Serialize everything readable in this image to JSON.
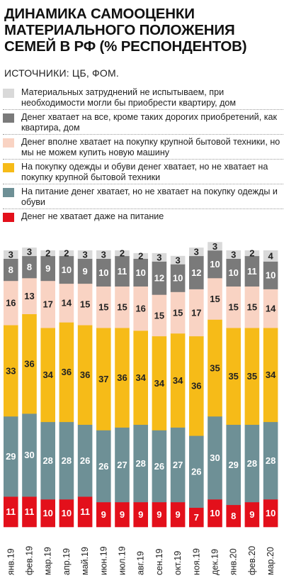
{
  "title": "ДИНАМИКА САМООЦЕНКИ МАТЕРИАЛЬНОГО ПОЛОЖЕНИЯ СЕМЕЙ В РФ (% РЕСПОНДЕНТОВ)",
  "source": "ИСТОЧНИКИ: ЦБ, ФОМ.",
  "legend": [
    {
      "label": "Материальных затруднений не испытываем, при необходимости могли бы приобрести квартиру, дом",
      "color": "#d9d9d9"
    },
    {
      "label": "Денег хватает на все, кроме таких дорогих приобретений, как квартира, дом",
      "color": "#7a7a7a"
    },
    {
      "label": "Денег вполне хватает на покупку крупной бытовой техники, но мы не можем купить новую машину",
      "color": "#f9d3c3"
    },
    {
      "label": "На покупку одежды и обуви денег хватает, но не хватает на покупку крупной бытовой техники",
      "color": "#f6bb18"
    },
    {
      "label": "На питание денег хватает, но не хватает на покупку одежды и обуви",
      "color": "#6e9096"
    },
    {
      "label": "Денег не хватает даже на питание",
      "color": "#e3101b"
    }
  ],
  "chart_data": {
    "type": "bar",
    "stacked": true,
    "orientation": "vertical",
    "categories": [
      "янв.19",
      "фев.19",
      "мар.19",
      "апр.19",
      "май.19",
      "июн.19",
      "июл.19",
      "авг.19",
      "сен.19",
      "окт.19",
      "ноя.19",
      "дек.19",
      "янв.20",
      "фев.20",
      "мар.20"
    ],
    "series": [
      {
        "name": "Денег не хватает даже на питание",
        "color": "#e3101b",
        "values": [
          11,
          11,
          10,
          10,
          11,
          9,
          9,
          9,
          9,
          9,
          7,
          10,
          8,
          9,
          10
        ]
      },
      {
        "name": "На питание денег хватает, но не хватает на покупку одежды и обуви",
        "color": "#6e9096",
        "values": [
          29,
          30,
          28,
          28,
          26,
          26,
          27,
          28,
          26,
          27,
          26,
          30,
          29,
          28,
          28
        ]
      },
      {
        "name": "На покупку одежды и обуви денег хватает, но не хватает на покупку крупной бытовой техники",
        "color": "#f6bb18",
        "values": [
          33,
          36,
          34,
          36,
          36,
          37,
          36,
          34,
          34,
          34,
          36,
          35,
          35,
          35,
          34
        ]
      },
      {
        "name": "Денег вполне хватает на покупку крупной бытовой техники, но мы не можем купить новую машину",
        "color": "#f9d3c3",
        "values": [
          16,
          13,
          17,
          14,
          15,
          15,
          15,
          16,
          15,
          15,
          17,
          15,
          15,
          15,
          14
        ]
      },
      {
        "name": "Денег хватает на все, кроме таких дорогих приобретений, как квартира, дом",
        "color": "#7a7a7a",
        "values": [
          8,
          8,
          9,
          10,
          9,
          10,
          11,
          10,
          12,
          10,
          12,
          10,
          10,
          11,
          10
        ]
      },
      {
        "name": "Материальных затруднений не испытываем, при необходимости могли бы приобрести квартиру, дом",
        "color": "#d9d9d9",
        "values": [
          3,
          3,
          2,
          2,
          3,
          3,
          2,
          2,
          3,
          3,
          3,
          3,
          3,
          2,
          4
        ]
      }
    ],
    "label_colors": [
      "#ffffff",
      "#ffffff",
      "#222222",
      "#222222",
      "#ffffff",
      "#222222"
    ],
    "xlabel": "",
    "ylabel": ""
  }
}
